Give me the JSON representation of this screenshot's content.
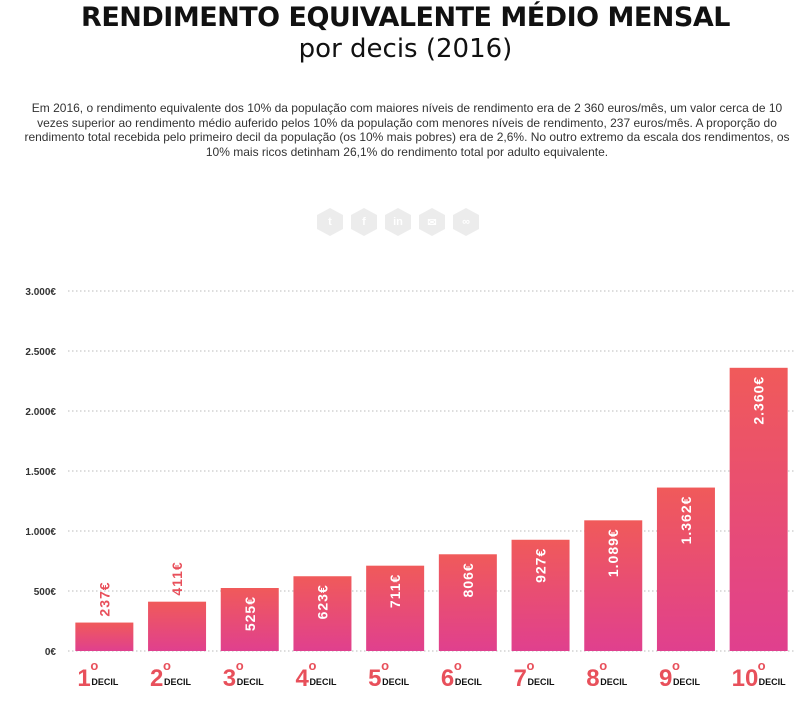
{
  "title": "RENDIMENTO EQUIVALENTE MÉDIO MENSAL",
  "subtitle": "por decis (2016)",
  "description": "Em 2016, o rendimento equivalente dos 10% da população com maiores níveis de rendimento era de 2 360 euros/mês, um valor cerca de 10 vezes superior ao rendimento médio auferido pelos 10% da população com menores níveis de rendimento, 237 euros/mês. A proporção do rendimento total recebida pelo primeiro decil da população (os 10% mais pobres) era de 2,6%. No outro extremo da escala dos rendimentos, os 10% mais ricos detinham 26,1% do rendimento total por adulto equivalente.",
  "share_icons": [
    {
      "name": "twitter-icon",
      "glyph": "t"
    },
    {
      "name": "facebook-icon",
      "glyph": "f"
    },
    {
      "name": "linkedin-icon",
      "glyph": "in"
    },
    {
      "name": "email-icon",
      "glyph": "✉"
    },
    {
      "name": "link-icon",
      "glyph": "∞"
    }
  ],
  "colors": {
    "bar_top": "#f05a5a",
    "bar_bottom": "#e0408e",
    "label_red": "#e8505b",
    "grid": "#bbbbbb",
    "tick": "#333333"
  },
  "chart_data": {
    "type": "bar",
    "title": "RENDIMENTO EQUIVALENTE MÉDIO MENSAL por decis (2016)",
    "categories": [
      "1º",
      "2º",
      "3º",
      "4º",
      "5º",
      "6º",
      "7º",
      "8º",
      "9º",
      "10º"
    ],
    "category_number_labels": [
      "1",
      "2",
      "3",
      "4",
      "5",
      "6",
      "7",
      "8",
      "9",
      "10"
    ],
    "category_suffix": "o",
    "category_word": "DECIL",
    "values": [
      237,
      411,
      525,
      623,
      711,
      806,
      927,
      1089,
      1362,
      2360
    ],
    "value_labels": [
      "237€",
      "411€",
      "525€",
      "623€",
      "711€",
      "806€",
      "927€",
      "1.089€",
      "1.362€",
      "2.360€"
    ],
    "ylim": [
      0,
      3000
    ],
    "yticks": [
      0,
      500,
      1000,
      1500,
      2000,
      2500,
      3000
    ],
    "ytick_labels": [
      "0€",
      "500€",
      "1.000€",
      "1.500€",
      "2.000€",
      "2.500€",
      "3.000€"
    ],
    "grid": true,
    "unit": "euros/mês"
  }
}
